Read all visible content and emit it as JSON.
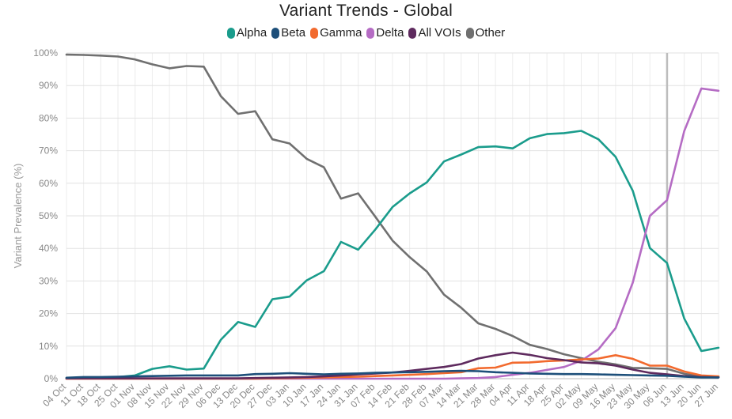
{
  "chart_data": {
    "type": "line",
    "title": "Variant Trends - Global",
    "xlabel": "",
    "ylabel": "Variant Prevalence (%)",
    "ylim": [
      0,
      100
    ],
    "y_ticks": [
      "0%",
      "10%",
      "20%",
      "30%",
      "40%",
      "50%",
      "60%",
      "70%",
      "80%",
      "90%",
      "100%"
    ],
    "grid": true,
    "legend_position": "top-center",
    "x": [
      "04 Oct",
      "11 Oct",
      "18 Oct",
      "25 Oct",
      "01 Nov",
      "08 Nov",
      "15 Nov",
      "22 Nov",
      "29 Nov",
      "06 Dec",
      "13 Dec",
      "20 Dec",
      "27 Dec",
      "03 Jan",
      "10 Jan",
      "17 Jan",
      "24 Jan",
      "31 Jan",
      "07 Feb",
      "14 Feb",
      "21 Feb",
      "28 Feb",
      "07 Mar",
      "14 Mar",
      "21 Mar",
      "28 Mar",
      "04 Apr",
      "11 Apr",
      "18 Apr",
      "25 Apr",
      "02 May",
      "09 May",
      "16 May",
      "23 May",
      "30 May",
      "06 Jun",
      "13 Jun",
      "20 Jun",
      "27 Jun"
    ],
    "highlight_x": "06 Jun",
    "series": [
      {
        "name": "Alpha",
        "color": "#1a9c8c",
        "values": [
          0.2,
          0.3,
          0.3,
          0.5,
          1.0,
          3.0,
          3.8,
          2.8,
          3.1,
          12.0,
          17.4,
          15.9,
          24.4,
          25.2,
          30.2,
          33.0,
          42.0,
          39.6,
          45.8,
          52.7,
          56.9,
          60.3,
          66.7,
          68.8,
          71.1,
          71.3,
          70.7,
          73.8,
          75.1,
          75.4,
          76.1,
          73.5,
          68.1,
          57.7,
          40.1,
          35.5,
          18.5,
          8.5,
          9.5
        ]
      },
      {
        "name": "Beta",
        "color": "#1d4f7a",
        "values": [
          0.3,
          0.5,
          0.5,
          0.6,
          0.7,
          0.8,
          0.9,
          1.0,
          1.0,
          1.0,
          1.0,
          1.4,
          1.5,
          1.7,
          1.5,
          1.3,
          1.5,
          1.6,
          1.8,
          1.9,
          2.0,
          2.1,
          2.3,
          2.4,
          2.3,
          2.0,
          1.8,
          1.6,
          1.5,
          1.4,
          1.4,
          1.3,
          1.2,
          1.1,
          1.0,
          0.9,
          0.6,
          0.4,
          0.4
        ]
      },
      {
        "name": "Gamma",
        "color": "#f26a2e",
        "values": [
          0.0,
          0.0,
          0.0,
          0.0,
          0.0,
          0.0,
          0.0,
          0.0,
          0.0,
          0.0,
          0.0,
          0.0,
          0.1,
          0.2,
          0.3,
          0.4,
          0.5,
          0.6,
          0.8,
          1.0,
          1.2,
          1.4,
          1.7,
          2.0,
          3.2,
          3.4,
          4.9,
          5.0,
          5.4,
          5.6,
          5.9,
          6.2,
          7.2,
          6.1,
          4.0,
          4.0,
          2.2,
          1.0,
          0.7
        ]
      },
      {
        "name": "Delta",
        "color": "#b56cc4",
        "values": [
          0.0,
          0.0,
          0.0,
          0.0,
          0.0,
          0.0,
          0.0,
          0.0,
          0.0,
          0.0,
          0.0,
          0.0,
          0.0,
          0.0,
          0.0,
          0.0,
          0.0,
          0.0,
          0.0,
          0.0,
          0.0,
          0.0,
          0.0,
          0.1,
          0.2,
          0.5,
          1.2,
          1.8,
          2.7,
          3.6,
          5.5,
          9.0,
          15.5,
          29.5,
          50.0,
          54.8,
          76.0,
          89.1,
          88.4
        ]
      },
      {
        "name": "All VOIs",
        "color": "#5e2a5e",
        "values": [
          0.1,
          0.1,
          0.1,
          0.1,
          0.1,
          0.1,
          0.1,
          0.1,
          0.1,
          0.1,
          0.1,
          0.2,
          0.3,
          0.4,
          0.5,
          0.7,
          1.0,
          1.3,
          1.6,
          1.9,
          2.4,
          3.0,
          3.6,
          4.5,
          6.2,
          7.2,
          8.0,
          7.3,
          6.3,
          5.7,
          5.0,
          4.7,
          4.0,
          2.8,
          1.8,
          1.3,
          0.8,
          0.5,
          0.4
        ]
      },
      {
        "name": "Other",
        "color": "#707070",
        "values": [
          99.5,
          99.4,
          99.2,
          98.9,
          98.0,
          96.5,
          95.3,
          96.0,
          95.8,
          86.7,
          81.3,
          82.1,
          73.5,
          72.2,
          67.5,
          64.9,
          55.3,
          56.9,
          49.7,
          42.4,
          37.3,
          32.9,
          25.8,
          21.8,
          17.0,
          15.3,
          13.1,
          10.4,
          9.1,
          7.5,
          6.3,
          5.2,
          4.4,
          3.3,
          3.2,
          3.0,
          1.5,
          0.7,
          0.6
        ]
      }
    ]
  }
}
